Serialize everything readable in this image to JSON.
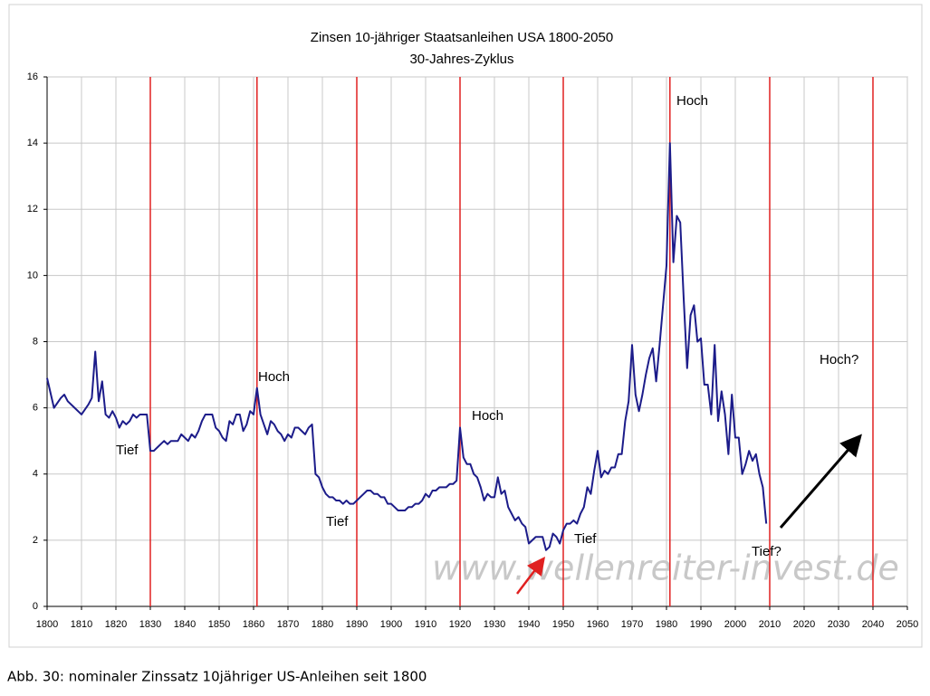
{
  "chart_data": {
    "type": "line",
    "title": "Zinsen 10-jähriger Staatsanleihen USA 1800-2050",
    "subtitle": "30-Jahres-Zyklus",
    "caption": "Abb. 30: nominaler Zinssatz 10jähriger US-Anleihen seit 1800",
    "watermark": "www.wellenreiter-invest.de",
    "annotations": [
      "Tief",
      "Hoch",
      "Tief",
      "Hoch",
      "Tief",
      "Hoch",
      "Tief?",
      "Hoch?"
    ],
    "color": "#1c1c8a",
    "grid": true,
    "xlim": [
      1800,
      2050
    ],
    "ylim": [
      0,
      16
    ],
    "xticks": [
      1800,
      1810,
      1820,
      1830,
      1840,
      1850,
      1860,
      1870,
      1880,
      1890,
      1900,
      1910,
      1920,
      1930,
      1940,
      1950,
      1960,
      1970,
      1980,
      1990,
      2000,
      2010,
      2020,
      2030,
      2040,
      2050
    ],
    "yticks": [
      0,
      2,
      4,
      6,
      8,
      10,
      12,
      14,
      16
    ],
    "cycle_lines": [
      1830,
      1861,
      1890,
      1920,
      1950,
      1981,
      2010,
      2040
    ],
    "cycle_line_color": "#e02020",
    "x": [
      1800,
      1802,
      1804,
      1805,
      1806,
      1808,
      1810,
      1812,
      1813,
      1814,
      1815,
      1816,
      1817,
      1818,
      1819,
      1820,
      1821,
      1822,
      1823,
      1824,
      1825,
      1826,
      1827,
      1828,
      1829,
      1830,
      1831,
      1832,
      1833,
      1834,
      1835,
      1836,
      1837,
      1838,
      1839,
      1840,
      1841,
      1842,
      1843,
      1844,
      1845,
      1846,
      1847,
      1848,
      1849,
      1850,
      1851,
      1852,
      1853,
      1854,
      1855,
      1856,
      1857,
      1858,
      1859,
      1860,
      1861,
      1862,
      1863,
      1864,
      1865,
      1866,
      1867,
      1868,
      1869,
      1870,
      1871,
      1872,
      1873,
      1874,
      1875,
      1876,
      1877,
      1878,
      1879,
      1880,
      1881,
      1882,
      1883,
      1884,
      1885,
      1886,
      1887,
      1888,
      1889,
      1890,
      1891,
      1892,
      1893,
      1894,
      1895,
      1896,
      1897,
      1898,
      1899,
      1900,
      1901,
      1902,
      1903,
      1904,
      1905,
      1906,
      1907,
      1908,
      1909,
      1910,
      1911,
      1912,
      1913,
      1914,
      1915,
      1916,
      1917,
      1918,
      1919,
      1920,
      1921,
      1922,
      1923,
      1924,
      1925,
      1926,
      1927,
      1928,
      1929,
      1930,
      1931,
      1932,
      1933,
      1934,
      1935,
      1936,
      1937,
      1938,
      1939,
      1940,
      1941,
      1942,
      1943,
      1944,
      1945,
      1946,
      1947,
      1948,
      1949,
      1950,
      1951,
      1952,
      1953,
      1954,
      1955,
      1956,
      1957,
      1958,
      1959,
      1960,
      1961,
      1962,
      1963,
      1964,
      1965,
      1966,
      1967,
      1968,
      1969,
      1970,
      1971,
      1972,
      1973,
      1974,
      1975,
      1976,
      1977,
      1978,
      1979,
      1980,
      1981,
      1982,
      1983,
      1984,
      1985,
      1986,
      1987,
      1988,
      1989,
      1990,
      1991,
      1992,
      1993,
      1994,
      1995,
      1996,
      1997,
      1998,
      1999,
      2000,
      2001,
      2002,
      2003,
      2004,
      2005,
      2006,
      2007,
      2008,
      2009
    ],
    "values": [
      6.9,
      6.0,
      6.3,
      6.4,
      6.2,
      6.0,
      5.8,
      6.1,
      6.3,
      7.7,
      6.2,
      6.8,
      5.8,
      5.7,
      5.9,
      5.7,
      5.4,
      5.6,
      5.5,
      5.6,
      5.8,
      5.7,
      5.8,
      5.8,
      5.8,
      4.7,
      4.7,
      4.8,
      4.9,
      5.0,
      4.9,
      5.0,
      5.0,
      5.0,
      5.2,
      5.1,
      5.0,
      5.2,
      5.1,
      5.3,
      5.6,
      5.8,
      5.8,
      5.8,
      5.4,
      5.3,
      5.1,
      5.0,
      5.6,
      5.5,
      5.8,
      5.8,
      5.3,
      5.5,
      5.9,
      5.8,
      6.6,
      5.8,
      5.5,
      5.2,
      5.6,
      5.5,
      5.3,
      5.2,
      5.0,
      5.2,
      5.1,
      5.4,
      5.4,
      5.3,
      5.2,
      5.4,
      5.5,
      4.0,
      3.9,
      3.6,
      3.4,
      3.3,
      3.3,
      3.2,
      3.2,
      3.1,
      3.2,
      3.1,
      3.1,
      3.2,
      3.3,
      3.4,
      3.5,
      3.5,
      3.4,
      3.4,
      3.3,
      3.3,
      3.1,
      3.1,
      3.0,
      2.9,
      2.9,
      2.9,
      3.0,
      3.0,
      3.1,
      3.1,
      3.2,
      3.4,
      3.3,
      3.5,
      3.5,
      3.6,
      3.6,
      3.6,
      3.7,
      3.7,
      3.8,
      5.4,
      4.5,
      4.3,
      4.3,
      4.0,
      3.9,
      3.6,
      3.2,
      3.4,
      3.3,
      3.3,
      3.9,
      3.4,
      3.5,
      3.0,
      2.8,
      2.6,
      2.7,
      2.5,
      2.4,
      1.9,
      2.0,
      2.1,
      2.1,
      2.1,
      1.7,
      1.8,
      2.2,
      2.1,
      1.9,
      2.3,
      2.5,
      2.5,
      2.6,
      2.5,
      2.8,
      3.0,
      3.6,
      3.4,
      4.1,
      4.7,
      3.9,
      4.1,
      4.0,
      4.2,
      4.2,
      4.6,
      4.6,
      5.6,
      6.2,
      7.9,
      6.4,
      5.9,
      6.4,
      7.0,
      7.5,
      7.8,
      6.8,
      7.9,
      9.1,
      10.3,
      14.0,
      10.4,
      11.8,
      11.6,
      9.3,
      7.2,
      8.8,
      9.1,
      8.0,
      8.1,
      6.7,
      6.7,
      5.8,
      7.9,
      5.6,
      6.5,
      5.8,
      4.6,
      6.4,
      5.1,
      5.1,
      4.0,
      4.3,
      4.7,
      4.4,
      4.6,
      4.0,
      3.6,
      2.5
    ]
  }
}
